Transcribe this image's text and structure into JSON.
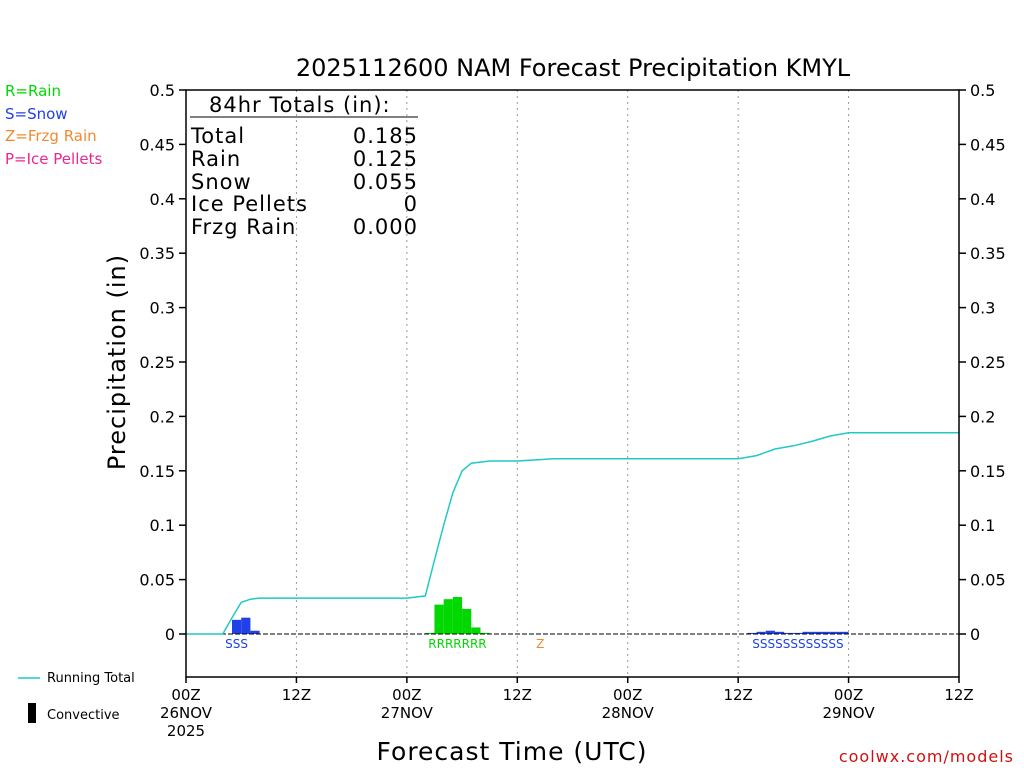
{
  "chart_data": {
    "type": "bar",
    "title": "2025112600 NAM Forecast Precipitation KMYL",
    "xlabel": "Forecast Time (UTC)",
    "ylabel": "Precipitation (in)",
    "ylim": [
      -0.04,
      0.5
    ],
    "y_ticks": [
      0,
      0.05,
      0.1,
      0.15,
      0.2,
      0.25,
      0.3,
      0.35,
      0.4,
      0.45,
      0.5
    ],
    "y_tick_labels": [
      "0",
      "0.05",
      "0.1",
      "0.15",
      "0.2",
      "0.25",
      "0.3",
      "0.35",
      "0.4",
      "0.45",
      "0.5"
    ],
    "xlim_hours": [
      0,
      84
    ],
    "x_ticks": [
      {
        "hour": 0,
        "lines": [
          "00Z",
          "26NOV",
          "2025"
        ]
      },
      {
        "hour": 12,
        "lines": [
          "12Z"
        ]
      },
      {
        "hour": 24,
        "lines": [
          "00Z",
          "27NOV"
        ]
      },
      {
        "hour": 36,
        "lines": [
          "12Z"
        ]
      },
      {
        "hour": 48,
        "lines": [
          "00Z",
          "28NOV"
        ]
      },
      {
        "hour": 60,
        "lines": [
          "12Z"
        ]
      },
      {
        "hour": 72,
        "lines": [
          "00Z",
          "29NOV"
        ]
      },
      {
        "hour": 84,
        "lines": [
          "12Z"
        ]
      }
    ],
    "grid": "vertical dotted at each 12Z/00Z",
    "legend": {
      "ptype": [
        {
          "label": "R=Rain",
          "color": "#00d800"
        },
        {
          "label": "S=Snow",
          "color": "#2040e8"
        },
        {
          "label": "Z=Frzg Rain",
          "color": "#f08a30"
        },
        {
          "label": "P=Ice Pellets",
          "color": "#e82890"
        }
      ],
      "running_total_label": "Running Total",
      "convective_label": "Convective"
    },
    "totals_box": {
      "heading": "84hr Totals (in):",
      "rows": [
        {
          "label": "Total",
          "value": "0.185"
        },
        {
          "label": "Rain",
          "value": "0.125"
        },
        {
          "label": "Snow",
          "value": "0.055"
        },
        {
          "label": "Ice Pellets",
          "value": "0"
        },
        {
          "label": "Frzg Rain",
          "value": "0.000"
        }
      ]
    },
    "bar_width_hours": 1,
    "bars": [
      {
        "hour": 5,
        "value": 0.013,
        "type": "snow"
      },
      {
        "hour": 6,
        "value": 0.015,
        "type": "snow"
      },
      {
        "hour": 7,
        "value": 0.003,
        "type": "snow"
      },
      {
        "hour": 26,
        "value": 0.001,
        "type": "rain"
      },
      {
        "hour": 27,
        "value": 0.027,
        "type": "rain"
      },
      {
        "hour": 28,
        "value": 0.032,
        "type": "rain"
      },
      {
        "hour": 29,
        "value": 0.034,
        "type": "rain"
      },
      {
        "hour": 30,
        "value": 0.023,
        "type": "rain"
      },
      {
        "hour": 31,
        "value": 0.006,
        "type": "rain"
      },
      {
        "hour": 32,
        "value": 0.001,
        "type": "rain"
      },
      {
        "hour": 61,
        "value": 0.001,
        "type": "snow"
      },
      {
        "hour": 62,
        "value": 0.002,
        "type": "snow"
      },
      {
        "hour": 63,
        "value": 0.003,
        "type": "snow"
      },
      {
        "hour": 64,
        "value": 0.002,
        "type": "snow"
      },
      {
        "hour": 65,
        "value": 0.001,
        "type": "snow"
      },
      {
        "hour": 66,
        "value": 0.001,
        "type": "snow"
      },
      {
        "hour": 67,
        "value": 0.002,
        "type": "snow"
      },
      {
        "hour": 68,
        "value": 0.002,
        "type": "snow"
      },
      {
        "hour": 69,
        "value": 0.002,
        "type": "snow"
      },
      {
        "hour": 70,
        "value": 0.002,
        "type": "snow"
      },
      {
        "hour": 71,
        "value": 0.002,
        "type": "snow"
      }
    ],
    "ptype_codes": [
      {
        "hour": 5.5,
        "text": "SSS",
        "type": "snow"
      },
      {
        "hour": 29.5,
        "text": "RRRRRRR",
        "type": "rain"
      },
      {
        "hour": 38.5,
        "text": "Z",
        "type": "frzg"
      },
      {
        "hour": 66.5,
        "text": "SSSSSSSSSSSS",
        "type": "snow"
      }
    ],
    "running_total": {
      "x": [
        0,
        3,
        4,
        5,
        6,
        7,
        8,
        9,
        12,
        18,
        24,
        26,
        27,
        28,
        29,
        30,
        31,
        32,
        33,
        34,
        36,
        38,
        40,
        48,
        60,
        62,
        64,
        66,
        68,
        70,
        72,
        74,
        84
      ],
      "y": [
        0,
        0,
        0,
        0.015,
        0.029,
        0.032,
        0.033,
        0.033,
        0.033,
        0.033,
        0.033,
        0.035,
        0.068,
        0.1,
        0.13,
        0.15,
        0.157,
        0.158,
        0.159,
        0.159,
        0.159,
        0.16,
        0.161,
        0.161,
        0.161,
        0.164,
        0.17,
        0.173,
        0.177,
        0.182,
        0.185,
        0.185,
        0.185
      ]
    }
  },
  "branding": {
    "watermark": "coolwx.com/models"
  },
  "colors": {
    "rain": "#00d800",
    "snow": "#2040e8",
    "frzg": "#f08a30",
    "ice": "#e82890",
    "running_total": "#20c8c8",
    "axis": "#000000",
    "grid": "#999999",
    "watermark": "#d01010"
  }
}
